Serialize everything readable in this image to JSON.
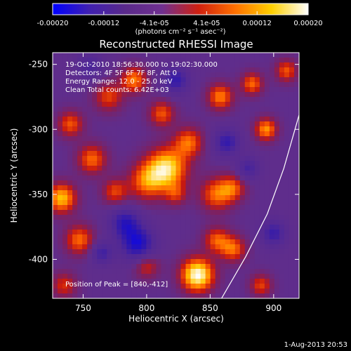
{
  "page": {
    "background_color": "#000000",
    "text_color": "#ffffff",
    "footer_timestamp": "1-Aug-2013 20:53"
  },
  "chart_data": {
    "type": "heatmap",
    "title": "Reconstructed RHESSI Image",
    "xlabel": "Heliocentric X (arcsec)",
    "ylabel": "Heliocentric Y (arcsec)",
    "xlim": [
      726,
      920
    ],
    "ylim": [
      -430,
      -241
    ],
    "x_ticks": [
      750,
      800,
      850,
      900
    ],
    "y_ticks": [
      -250,
      -300,
      -350,
      -400
    ],
    "info_lines": [
      "19-Oct-2010 18:56:30.000 to 19:02:30.000",
      "Detectors: 4F 5F 6F 7F 8F, Att 0",
      "Energy Range: 12.0 - 25.0 keV",
      "Clean    Total counts: 6.42E+03"
    ],
    "peak_label": "Position of Peak = [840,-412]",
    "peak_position": [
      840,
      -412
    ],
    "colorbar": {
      "range": [
        -0.0002,
        0.0002
      ],
      "tick_values": [
        -0.0002,
        -0.00012,
        -4.1e-05,
        4.1e-05,
        0.00012,
        0.0002
      ],
      "tick_labels": [
        "-0.00020",
        "-0.00012",
        "-4.1e-05",
        "4.1e-05",
        "0.00012",
        "0.00020"
      ],
      "unit_label": "(photons cm⁻² s⁻¹ asec⁻²)",
      "colors": [
        "#0000ff",
        "#4020b0",
        "#5a2a8a",
        "#703090",
        "#d02010",
        "#ff7000",
        "#ffd000",
        "#ffffff"
      ]
    },
    "limb_curve": {
      "color": "#ffffff",
      "points": [
        [
          859,
          -430
        ],
        [
          878,
          -398
        ],
        [
          895,
          -365
        ],
        [
          908,
          -330
        ],
        [
          920,
          -289
        ]
      ]
    },
    "blobs": [
      {
        "x": 840,
        "y": -412,
        "amp": 1.0,
        "r": 9
      },
      {
        "x": 816,
        "y": -330,
        "amp": 0.85,
        "r": 11
      },
      {
        "x": 800,
        "y": -340,
        "amp": 0.55,
        "r": 10
      },
      {
        "x": 855,
        "y": -350,
        "amp": 0.55,
        "r": 9
      },
      {
        "x": 868,
        "y": -345,
        "amp": 0.45,
        "r": 7
      },
      {
        "x": 733,
        "y": -353,
        "amp": 0.75,
        "r": 8
      },
      {
        "x": 747,
        "y": -385,
        "amp": 0.55,
        "r": 8
      },
      {
        "x": 757,
        "y": -323,
        "amp": 0.55,
        "r": 8
      },
      {
        "x": 790,
        "y": -262,
        "amp": 0.6,
        "r": 7
      },
      {
        "x": 770,
        "y": -275,
        "amp": 0.45,
        "r": 8
      },
      {
        "x": 812,
        "y": -288,
        "amp": 0.5,
        "r": 7
      },
      {
        "x": 833,
        "y": -310,
        "amp": 0.55,
        "r": 8
      },
      {
        "x": 858,
        "y": -275,
        "amp": 0.6,
        "r": 7
      },
      {
        "x": 883,
        "y": -265,
        "amp": 0.55,
        "r": 6
      },
      {
        "x": 894,
        "y": -300,
        "amp": 0.65,
        "r": 6
      },
      {
        "x": 910,
        "y": -255,
        "amp": 0.5,
        "r": 6
      },
      {
        "x": 740,
        "y": -296,
        "amp": 0.5,
        "r": 7
      },
      {
        "x": 775,
        "y": -348,
        "amp": 0.45,
        "r": 7
      },
      {
        "x": 868,
        "y": -392,
        "amp": 0.55,
        "r": 7
      },
      {
        "x": 855,
        "y": -385,
        "amp": 0.5,
        "r": 7
      },
      {
        "x": 890,
        "y": -420,
        "amp": 0.45,
        "r": 6
      },
      {
        "x": 800,
        "y": -405,
        "amp": 0.4,
        "r": 7
      },
      {
        "x": 735,
        "y": -420,
        "amp": 0.4,
        "r": 7
      },
      {
        "x": 823,
        "y": -350,
        "amp": 0.35,
        "r": 6
      },
      {
        "x": 783,
        "y": -372,
        "amp": -0.65,
        "r": 8
      },
      {
        "x": 793,
        "y": -388,
        "amp": -0.8,
        "r": 9
      },
      {
        "x": 823,
        "y": -262,
        "amp": -0.6,
        "r": 7
      },
      {
        "x": 863,
        "y": -310,
        "amp": -0.6,
        "r": 7
      },
      {
        "x": 765,
        "y": -395,
        "amp": -0.5,
        "r": 6
      },
      {
        "x": 900,
        "y": -380,
        "amp": -0.55,
        "r": 7
      },
      {
        "x": 755,
        "y": -252,
        "amp": -0.4,
        "r": 7
      },
      {
        "x": 880,
        "y": -330,
        "amp": -0.45,
        "r": 6
      }
    ]
  }
}
